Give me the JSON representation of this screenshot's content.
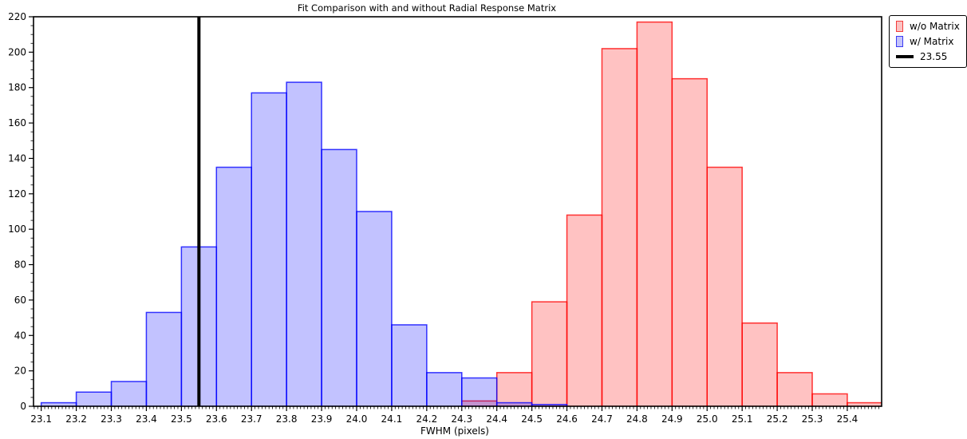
{
  "title": "Fit Comparison with and without Radial Response Matrix",
  "xlabel": "FWHM (pixels)",
  "legend": {
    "items": [
      {
        "label": "w/o Matrix",
        "type": "patch",
        "fill": "#fbc3c3",
        "edge": "#f33b3b"
      },
      {
        "label": "w/ Matrix",
        "type": "patch",
        "fill": "#c3c3fb",
        "edge": "#3b3bf3"
      },
      {
        "label": "23.55",
        "type": "line",
        "color": "#000000"
      }
    ]
  },
  "chart_data": {
    "type": "bar",
    "subtype": "histogram",
    "title": "Fit Comparison with and without Radial Response Matrix",
    "xlabel": "FWHM (pixels)",
    "ylabel": "",
    "bin_width": 0.1,
    "xlim": [
      23.078,
      25.498
    ],
    "ylim": [
      0,
      220
    ],
    "x_ticks": [
      "23.1",
      "23.2",
      "23.3",
      "23.4",
      "23.5",
      "23.6",
      "23.7",
      "23.8",
      "23.9",
      "24.0",
      "24.1",
      "24.2",
      "24.3",
      "24.4",
      "24.5",
      "24.6",
      "24.7",
      "24.8",
      "24.9",
      "25.0",
      "25.1",
      "25.2",
      "25.3",
      "25.4"
    ],
    "y_ticks": [
      "0",
      "20",
      "40",
      "60",
      "80",
      "100",
      "120",
      "140",
      "160",
      "180",
      "200",
      "220"
    ],
    "minor_x_step": 0.01,
    "minor_y_step": 5,
    "grid": false,
    "legend_position": "outside-top-right",
    "series": [
      {
        "name": "w/o Matrix",
        "bin_start": 24.3,
        "values": [
          3,
          19,
          59,
          108,
          202,
          217,
          185,
          135,
          47,
          19,
          7,
          2
        ],
        "fill": "rgba(255,0,0,0.24)",
        "edge": "rgba(255,0,0,0.78)"
      },
      {
        "name": "w/ Matrix",
        "bin_start": 23.1,
        "values": [
          2,
          8,
          14,
          53,
          90,
          135,
          177,
          183,
          145,
          110,
          46,
          19,
          16,
          2,
          1
        ],
        "fill": "rgba(0,0,255,0.24)",
        "edge": "rgba(0,0,255,0.78)"
      }
    ],
    "vline": {
      "x": 23.55,
      "label": "23.55",
      "color": "#000000",
      "width": 4
    }
  }
}
